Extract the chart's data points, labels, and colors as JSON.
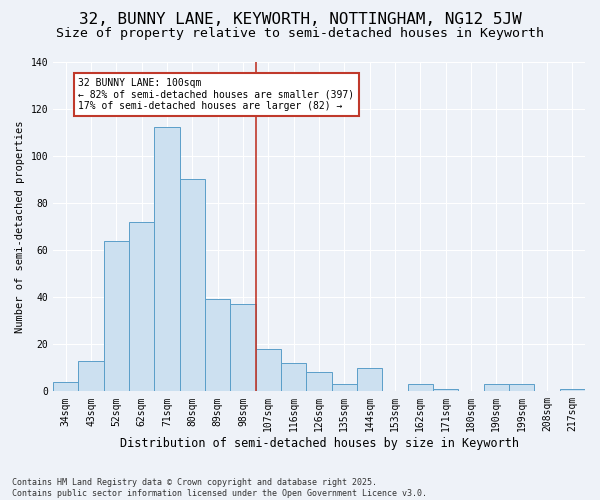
{
  "title1": "32, BUNNY LANE, KEYWORTH, NOTTINGHAM, NG12 5JW",
  "title2": "Size of property relative to semi-detached houses in Keyworth",
  "xlabel": "Distribution of semi-detached houses by size in Keyworth",
  "ylabel": "Number of semi-detached properties",
  "categories": [
    "34sqm",
    "43sqm",
    "52sqm",
    "62sqm",
    "71sqm",
    "80sqm",
    "89sqm",
    "98sqm",
    "107sqm",
    "116sqm",
    "126sqm",
    "135sqm",
    "144sqm",
    "153sqm",
    "162sqm",
    "171sqm",
    "180sqm",
    "190sqm",
    "199sqm",
    "208sqm",
    "217sqm"
  ],
  "values": [
    4,
    13,
    64,
    72,
    112,
    90,
    39,
    37,
    18,
    12,
    8,
    3,
    10,
    0,
    3,
    1,
    0,
    3,
    3,
    0,
    1
  ],
  "bar_color": "#cce0f0",
  "bar_edge_color": "#5a9ec9",
  "vline_x": 7.5,
  "vline_color": "#c0392b",
  "annotation_line1": "32 BUNNY LANE: 100sqm",
  "annotation_line2": "← 82% of semi-detached houses are smaller (397)",
  "annotation_line3": "17% of semi-detached houses are larger (82) →",
  "annotation_box_color": "#c0392b",
  "annotation_fill": "#ffffff",
  "ylim": [
    0,
    140
  ],
  "yticks": [
    0,
    20,
    40,
    60,
    80,
    100,
    120,
    140
  ],
  "bg_color": "#eef2f8",
  "grid_color": "#ffffff",
  "footer": "Contains HM Land Registry data © Crown copyright and database right 2025.\nContains public sector information licensed under the Open Government Licence v3.0.",
  "title1_fontsize": 11.5,
  "title2_fontsize": 9.5,
  "xlabel_fontsize": 8.5,
  "ylabel_fontsize": 7.5,
  "tick_fontsize": 7,
  "annot_fontsize": 7,
  "footer_fontsize": 6
}
